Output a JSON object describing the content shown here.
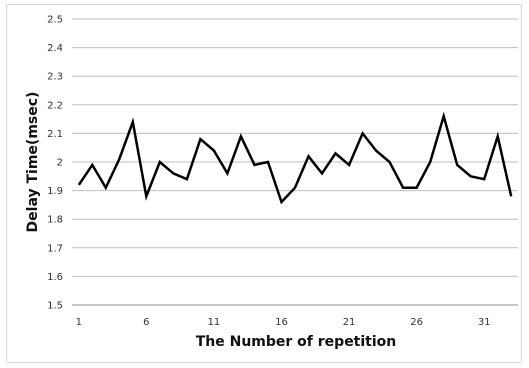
{
  "chart_data": {
    "type": "line",
    "title": "",
    "xlabel": "The Number of repetition",
    "ylabel": "Delay Time(msec)",
    "ylim": [
      1.5,
      2.5
    ],
    "yticks": [
      "1.5",
      "1.6",
      "1.7",
      "1.8",
      "1.9",
      "2",
      "2.1",
      "2.2",
      "2.3",
      "2.4",
      "2.5"
    ],
    "xticks": [
      "1",
      "6",
      "11",
      "16",
      "21",
      "26",
      "31"
    ],
    "grid": "horizontal",
    "legend": "none",
    "line_color": "#000000",
    "series": [
      {
        "x": [
          1,
          2,
          3,
          4,
          5,
          6,
          7,
          8,
          9,
          10,
          11,
          12,
          13,
          14,
          15,
          16,
          17,
          18,
          19,
          20,
          21,
          22,
          23,
          24,
          25,
          26,
          27,
          28,
          29,
          30,
          31,
          32,
          33
        ],
        "values": [
          1.92,
          1.99,
          1.91,
          2.01,
          2.14,
          1.88,
          2.0,
          1.96,
          1.94,
          2.08,
          2.04,
          1.96,
          2.09,
          1.99,
          2.0,
          1.86,
          1.91,
          2.02,
          1.96,
          2.03,
          1.99,
          2.1,
          2.04,
          2.0,
          1.91,
          1.91,
          2.0,
          2.16,
          1.99,
          1.95,
          1.94,
          2.09,
          1.88
        ]
      }
    ]
  }
}
